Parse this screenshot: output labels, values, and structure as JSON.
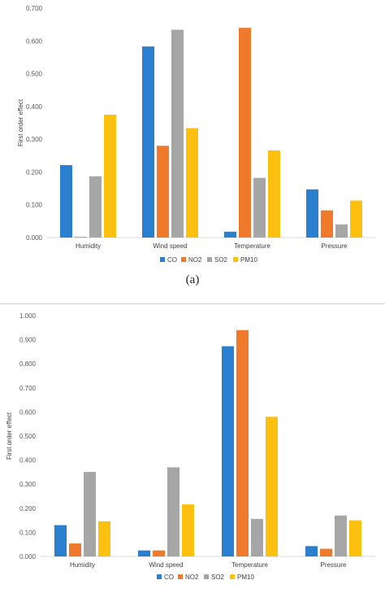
{
  "colors": {
    "CO": "#2b7fcf",
    "NO2": "#f07a2c",
    "SO2": "#a6a6a6",
    "PM10": "#fdc00e"
  },
  "caption_a": "(a)",
  "chart_data": [
    {
      "type": "bar",
      "title": "",
      "xlabel": "",
      "ylabel": "First order effect",
      "ylim": [
        0,
        0.7
      ],
      "yticks": [
        "0.000",
        "0.100",
        "0.200",
        "0.300",
        "0.400",
        "0.500",
        "0.600",
        "0.700"
      ],
      "grid": false,
      "legend": "bottom",
      "categories": [
        "Humidity",
        "Wind speed",
        "Temperature",
        "Pressure"
      ],
      "series": [
        {
          "name": "CO",
          "values": [
            0.221,
            0.583,
            0.018,
            0.147
          ]
        },
        {
          "name": "NO2",
          "values": [
            0.002,
            0.28,
            0.64,
            0.083
          ]
        },
        {
          "name": "SO2",
          "values": [
            0.187,
            0.634,
            0.182,
            0.04
          ]
        },
        {
          "name": "PM10",
          "values": [
            0.375,
            0.334,
            0.266,
            0.113
          ]
        }
      ]
    },
    {
      "type": "bar",
      "title": "",
      "xlabel": "",
      "ylabel": "First order effect",
      "ylim": [
        0,
        1.0
      ],
      "yticks": [
        "0.000",
        "0.100",
        "0.200",
        "0.300",
        "0.400",
        "0.500",
        "0.600",
        "0.700",
        "0.800",
        "0.900",
        "1.000"
      ],
      "grid": false,
      "legend": "bottom",
      "categories": [
        "Humidity",
        "Wind speed",
        "Temperature",
        "Pressure"
      ],
      "series": [
        {
          "name": "CO",
          "values": [
            0.13,
            0.025,
            0.873,
            0.043
          ]
        },
        {
          "name": "NO2",
          "values": [
            0.054,
            0.025,
            0.94,
            0.032
          ]
        },
        {
          "name": "SO2",
          "values": [
            0.351,
            0.37,
            0.156,
            0.17
          ]
        },
        {
          "name": "PM10",
          "values": [
            0.146,
            0.216,
            0.58,
            0.15
          ]
        }
      ]
    }
  ]
}
